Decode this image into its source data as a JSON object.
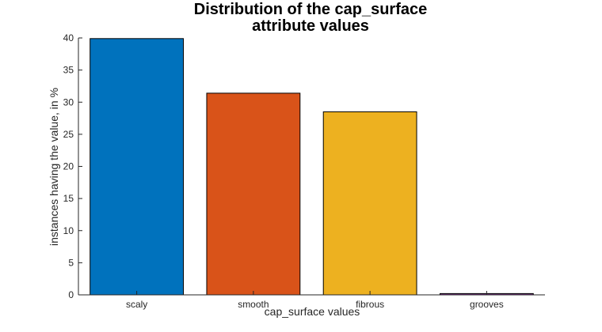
{
  "chart_data": {
    "type": "bar",
    "title": [
      "Distribution of the cap_surface",
      "attribute values"
    ],
    "xlabel": "cap_surface values",
    "ylabel": "instances having the value, in %",
    "categories": [
      "scaly",
      "smooth",
      "fibrous",
      "grooves"
    ],
    "values": [
      39.9,
      31.4,
      28.5,
      0.2
    ],
    "bar_colors": [
      "#0072BD",
      "#D95319",
      "#EDB120",
      "#7E2F8E"
    ],
    "ylim": [
      0,
      40
    ],
    "yticks": [
      0,
      5,
      10,
      15,
      20,
      25,
      30,
      35,
      40
    ],
    "grid": false,
    "legend": "none"
  }
}
